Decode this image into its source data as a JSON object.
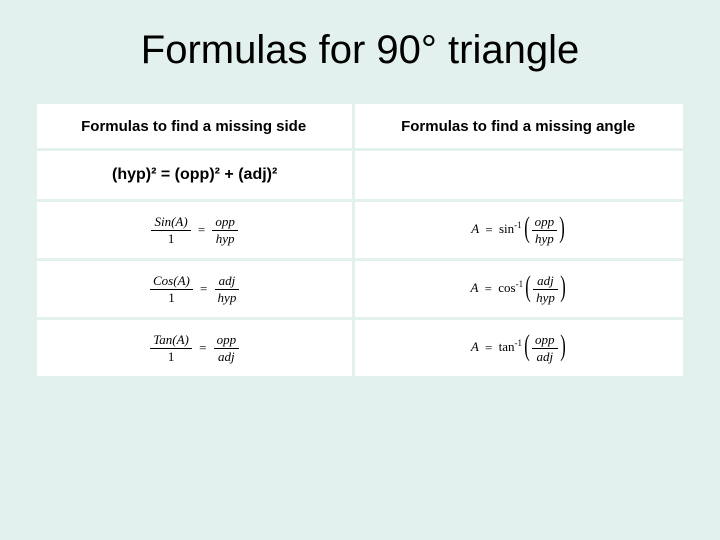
{
  "background_color": "#e2f1ed",
  "cell_background": "#ffffff",
  "title": {
    "text": "Formulas for 90° triangle",
    "fontsize": 40,
    "color": "#000000"
  },
  "table": {
    "headers": {
      "left": "Formulas to find a missing side",
      "right": "Formulas to find a missing angle"
    },
    "pythagoras": "(hyp)² = (opp)² + (adj)²",
    "trig_side": [
      {
        "func": "Sin(A)",
        "den1": "1",
        "num2": "opp",
        "den2": "hyp"
      },
      {
        "func": "Cos(A)",
        "den1": "1",
        "num2": "adj",
        "den2": "hyp"
      },
      {
        "func": "Tan(A)",
        "den1": "1",
        "num2": "opp",
        "den2": "adj"
      }
    ],
    "trig_angle": [
      {
        "lhs": "A",
        "fn": "sin",
        "num": "opp",
        "den": "hyp"
      },
      {
        "lhs": "A",
        "fn": "cos",
        "num": "adj",
        "den": "hyp"
      },
      {
        "lhs": "A",
        "fn": "tan",
        "num": "opp",
        "den": "adj"
      }
    ]
  }
}
